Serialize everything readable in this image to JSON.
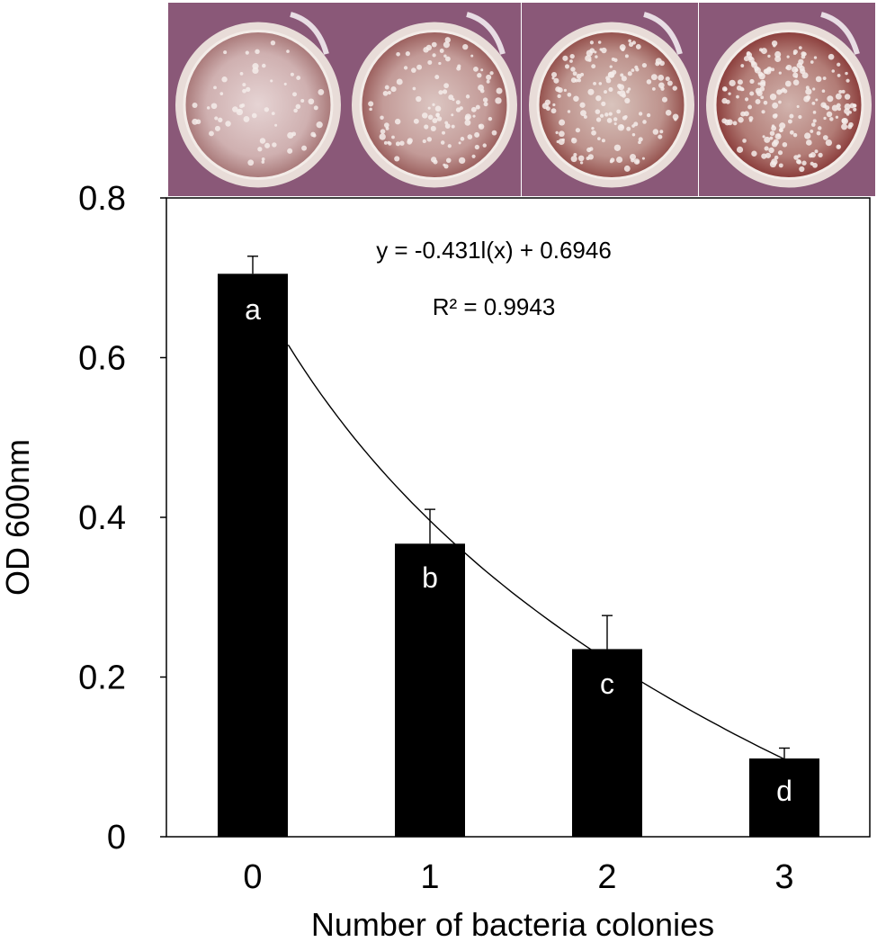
{
  "chart_data": {
    "type": "bar",
    "title": "",
    "xlabel": "Number of bacteria colonies",
    "ylabel": "OD 600nm",
    "categories": [
      "0",
      "1",
      "2",
      "3"
    ],
    "values": [
      0.705,
      0.367,
      0.235,
      0.098
    ],
    "errors": [
      0.022,
      0.043,
      0.042,
      0.013
    ],
    "significance_letters": [
      "a",
      "b",
      "c",
      "d"
    ],
    "ylim": [
      0,
      0.8
    ],
    "yticks": [
      "0",
      "0.2",
      "0.4",
      "0.6",
      "0.8"
    ],
    "ytick_values": [
      0,
      0.2,
      0.4,
      0.6,
      0.8
    ],
    "grid": false,
    "trendline": {
      "type": "logarithmic",
      "equation": "y = -0.431l(x) + 0.6946",
      "r_squared": "R² = 0.9943",
      "slope": -0.431,
      "intercept": 0.6946
    },
    "bar_color": "#000000",
    "photos": [
      {
        "name": "petri-dish-0"
      },
      {
        "name": "petri-dish-1"
      },
      {
        "name": "petri-dish-2"
      },
      {
        "name": "petri-dish-3"
      }
    ]
  }
}
